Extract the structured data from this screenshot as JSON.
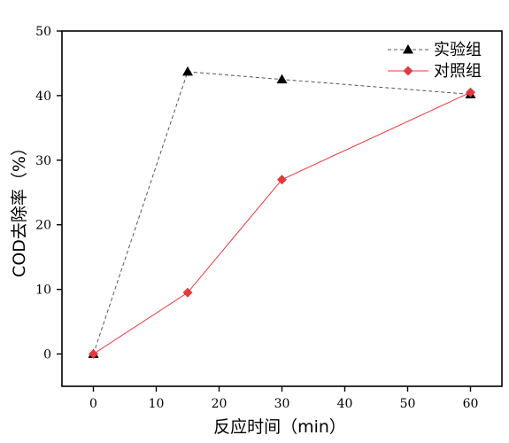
{
  "chart_data": {
    "type": "line",
    "title": "",
    "xlabel": "反应时间（min）",
    "ylabel": "COD去除率（%）",
    "xlim": [
      -5,
      65
    ],
    "ylim": [
      -5,
      50
    ],
    "x_ticks": [
      0,
      10,
      20,
      30,
      40,
      50,
      60
    ],
    "y_ticks": [
      0,
      10,
      20,
      30,
      40,
      50
    ],
    "grid": false,
    "legend_position": "top-right",
    "series": [
      {
        "name": "实验组",
        "x": [
          0,
          15,
          30,
          60
        ],
        "y": [
          0,
          43.7,
          42.5,
          40.2
        ],
        "color": "#555555",
        "line_style": "dashed",
        "marker": "triangle",
        "marker_color": "#000000"
      },
      {
        "name": "对照组",
        "x": [
          0,
          15,
          30,
          60
        ],
        "y": [
          0,
          9.5,
          27.0,
          40.5
        ],
        "color": "#e0393e",
        "line_style": "solid",
        "marker": "diamond",
        "marker_color": "#e0393e"
      }
    ]
  }
}
